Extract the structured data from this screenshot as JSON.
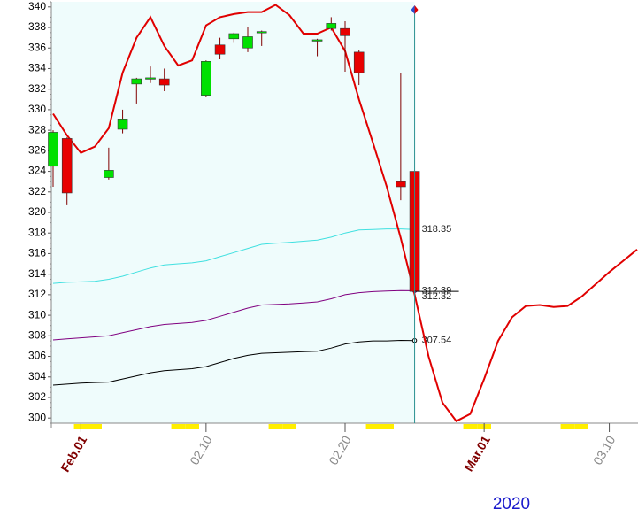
{
  "chart_data": {
    "type": "candlestick",
    "xlabel": "2020",
    "ylim": [
      299.5,
      340.5
    ],
    "yticks": [
      300,
      302,
      304,
      306,
      308,
      310,
      312,
      314,
      316,
      318,
      320,
      322,
      324,
      326,
      328,
      330,
      332,
      334,
      336,
      338,
      340
    ],
    "xlim": [
      "2020-01-30",
      "2020-03-12"
    ],
    "xticks": [
      {
        "value": "2020-02-01",
        "label": "Feb.01"
      },
      {
        "value": "2020-02-10",
        "label": "02.10"
      },
      {
        "value": "2020-02-20",
        "label": "02.20"
      },
      {
        "value": "2020-03-01",
        "label": "Mar.01"
      },
      {
        "value": "2020-03-10",
        "label": "03.10"
      }
    ],
    "up_color": "#00e000",
    "down_color": "#e80000",
    "candles": {
      "x": [
        "2020-01-30",
        "2020-01-31",
        "2020-02-03",
        "2020-02-04",
        "2020-02-05",
        "2020-02-06",
        "2020-02-07",
        "2020-02-10",
        "2020-02-11",
        "2020-02-12",
        "2020-02-13",
        "2020-02-14",
        "2020-02-18",
        "2020-02-19",
        "2020-02-20",
        "2020-02-21",
        "2020-02-24",
        "2020-02-25"
      ],
      "open": [
        324.5,
        327.2,
        323.4,
        328.1,
        332.5,
        333.0,
        333.0,
        331.4,
        336.3,
        336.9,
        336.0,
        337.55,
        336.7,
        337.9,
        337.9,
        335.6,
        323.0,
        324.0
      ],
      "high": [
        328.0,
        327.3,
        326.3,
        330.0,
        333.1,
        334.2,
        334.0,
        334.8,
        337.0,
        337.5,
        338.0,
        337.7,
        336.9,
        339.0,
        338.6,
        335.8,
        333.6,
        324.0
      ],
      "low": [
        322.5,
        320.7,
        323.2,
        327.7,
        330.6,
        332.6,
        331.8,
        331.2,
        334.9,
        336.5,
        335.6,
        336.2,
        335.2,
        337.7,
        333.7,
        332.4,
        321.2,
        312.2
      ],
      "close": [
        327.8,
        321.9,
        324.1,
        329.1,
        333.0,
        333.1,
        332.4,
        334.7,
        335.4,
        337.4,
        337.1,
        337.6,
        336.8,
        338.4,
        337.2,
        333.6,
        322.5,
        312.32
      ]
    },
    "x": [
      "2020-01-30",
      "2020-01-31",
      "2020-02-01",
      "2020-02-02",
      "2020-02-03",
      "2020-02-04",
      "2020-02-05",
      "2020-02-06",
      "2020-02-07",
      "2020-02-08",
      "2020-02-09",
      "2020-02-10",
      "2020-02-11",
      "2020-02-12",
      "2020-02-13",
      "2020-02-14",
      "2020-02-15",
      "2020-02-16",
      "2020-02-17",
      "2020-02-18",
      "2020-02-19",
      "2020-02-20",
      "2020-02-21",
      "2020-02-22",
      "2020-02-23",
      "2020-02-24",
      "2020-02-25",
      "2020-02-26",
      "2020-02-27",
      "2020-02-28",
      "2020-02-29",
      "2020-03-01",
      "2020-03-02",
      "2020-03-03",
      "2020-03-04",
      "2020-03-05",
      "2020-03-06",
      "2020-03-07",
      "2020-03-08",
      "2020-03-09",
      "2020-03-10",
      "2020-03-11",
      "2020-03-12"
    ],
    "series": [
      {
        "color": "#40e0e0",
        "label_last": true,
        "values": [
          313.1,
          313.2,
          313.25,
          313.3,
          313.5,
          313.8,
          314.2,
          314.6,
          314.9,
          315.0,
          315.1,
          315.3,
          315.7,
          316.1,
          316.5,
          316.9,
          317.0,
          317.1,
          317.2,
          317.3,
          317.6,
          318.0,
          318.3,
          318.35,
          318.4,
          318.4,
          318.35,
          null,
          null,
          null,
          null,
          null,
          null,
          null,
          null,
          null,
          null,
          null,
          null,
          null,
          null,
          null,
          null
        ]
      },
      {
        "color": "#800080",
        "label_last": true,
        "values": [
          307.6,
          307.7,
          307.8,
          307.9,
          308.0,
          308.3,
          308.6,
          308.9,
          309.1,
          309.2,
          309.3,
          309.5,
          309.9,
          310.3,
          310.7,
          311.0,
          311.05,
          311.1,
          311.2,
          311.3,
          311.6,
          312.0,
          312.2,
          312.3,
          312.35,
          312.4,
          312.39,
          null,
          null,
          null,
          null,
          null,
          null,
          null,
          null,
          null,
          null,
          null,
          null,
          null,
          null,
          null,
          null
        ]
      },
      {
        "color": "#000000",
        "label_last": true,
        "values": [
          303.2,
          303.3,
          303.4,
          303.45,
          303.5,
          303.8,
          304.1,
          304.4,
          304.6,
          304.7,
          304.8,
          305.0,
          305.4,
          305.8,
          306.1,
          306.3,
          306.35,
          306.4,
          306.45,
          306.5,
          306.8,
          307.2,
          307.4,
          307.5,
          307.5,
          307.55,
          307.54,
          null,
          null,
          null,
          null,
          null,
          null,
          null,
          null,
          null,
          null,
          null,
          null,
          null,
          null,
          null,
          null
        ]
      },
      {
        "color": "#e00000",
        "width": 2,
        "values": [
          329.6,
          327.5,
          325.8,
          326.4,
          328.2,
          333.6,
          337.0,
          339.0,
          336.2,
          334.3,
          334.8,
          338.2,
          339.0,
          339.3,
          339.5,
          339.5,
          340.2,
          339.2,
          337.4,
          337.4,
          338.0,
          335.7,
          331.0,
          326.8,
          322.5,
          317.5,
          312.0,
          306.0,
          301.5,
          299.7,
          300.4,
          303.8,
          307.5,
          309.8,
          310.9,
          311.0,
          310.8,
          310.9,
          311.8,
          313.0,
          314.2,
          315.3,
          316.4
        ]
      }
    ]
  }
}
